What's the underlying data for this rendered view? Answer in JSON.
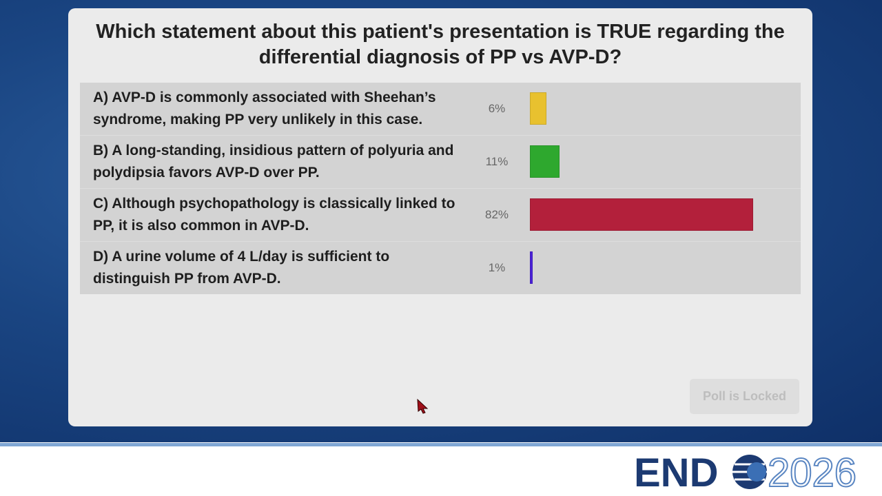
{
  "poll": {
    "type": "bar",
    "question": "Which statement about this patient's presentation is TRUE regarding the differential diagnosis of PP vs AVP-D?",
    "categories": [
      "A) AVP-D is commonly associated with Sheehan’s syndrome, making PP very unlikely in this case.",
      "B) A long-standing, insidious pattern of polyuria and polydipsia favors AVP-D over PP.",
      "C) Although psychopathology is classically linked to PP, it is also common in AVP-D.",
      "D) A urine volume of 4 L/day is sufficient to distinguish PP from AVP-D."
    ],
    "values": [
      6,
      11,
      82,
      1
    ],
    "value_labels": [
      "6%",
      "11%",
      "82%",
      "1%"
    ],
    "colors": [
      "#e8c12f",
      "#2ea82e",
      "#b3203b",
      "#4b22d8"
    ],
    "xlim": [
      0,
      100
    ]
  },
  "button": "Poll is Locked",
  "logo": {
    "brand": "END",
    "year": "2026"
  }
}
